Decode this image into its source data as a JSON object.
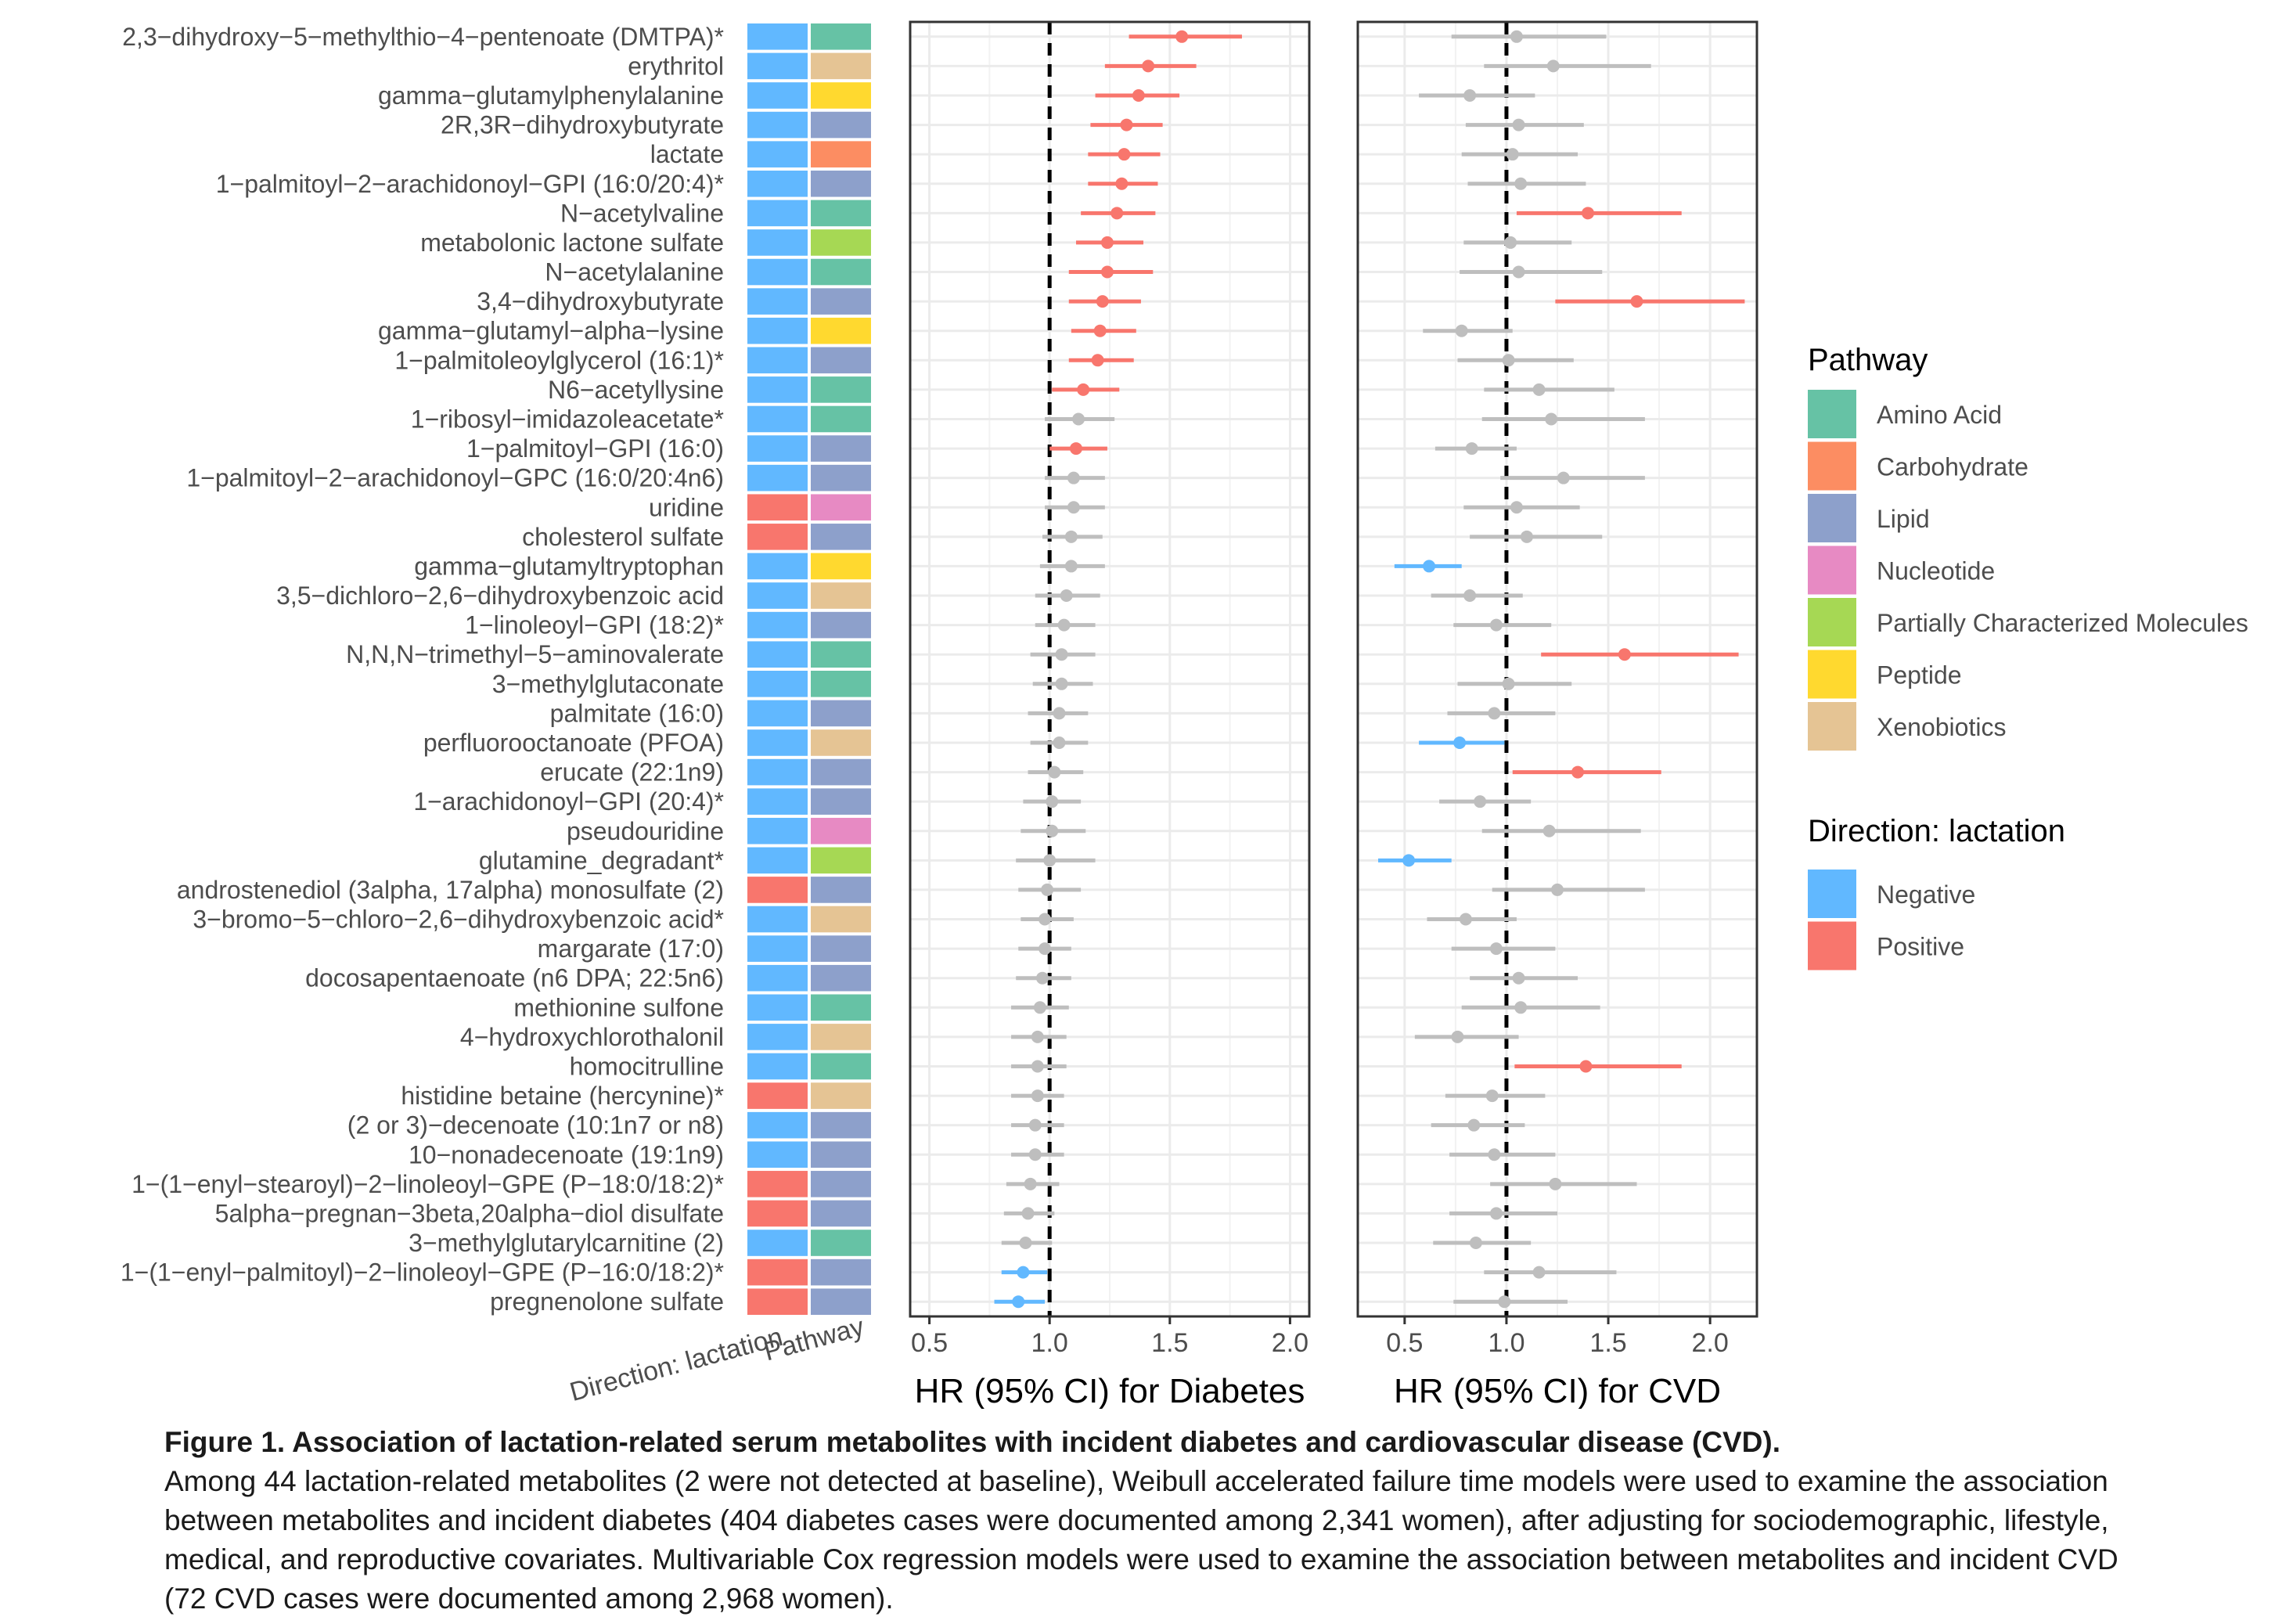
{
  "chart_data": {
    "type": "forest",
    "metabolites": [
      "2,3−dihydroxy−5−methylthio−4−pentenoate (DMTPA)*",
      "erythritol",
      "gamma−glutamylphenylalanine",
      "2R,3R−dihydroxybutyrate",
      "lactate",
      "1−palmitoyl−2−arachidonoyl−GPI (16:0/20:4)*",
      "N−acetylvaline",
      "metabolonic lactone sulfate",
      "N−acetylalanine",
      "3,4−dihydroxybutyrate",
      "gamma−glutamyl−alpha−lysine",
      "1−palmitoleoylglycerol (16:1)*",
      "N6−acetyllysine",
      "1−ribosyl−imidazoleacetate*",
      "1−palmitoyl−GPI (16:0)",
      "1−palmitoyl−2−arachidonoyl−GPC (16:0/20:4n6)",
      "uridine",
      "cholesterol sulfate",
      "gamma−glutamyltryptophan",
      "3,5−dichloro−2,6−dihydroxybenzoic acid",
      "1−linoleoyl−GPI (18:2)*",
      "N,N,N−trimethyl−5−aminovalerate",
      "3−methylglutaconate",
      "palmitate (16:0)",
      "perfluorooctanoate (PFOA)",
      "erucate (22:1n9)",
      "1−arachidonoyl−GPI (20:4)*",
      "pseudouridine",
      "glutamine_degradant*",
      "androstenediol (3alpha, 17alpha) monosulfate (2)",
      "3−bromo−5−chloro−2,6−dihydroxybenzoic acid*",
      "margarate (17:0)",
      "docosapentaenoate (n6 DPA; 22:5n6)",
      "methionine sulfone",
      "4−hydroxychlorothalonil",
      "homocitrulline",
      "histidine betaine (hercynine)*",
      "(2 or 3)−decenoate (10:1n7 or n8)",
      "10−nonadecenoate (19:1n9)",
      "1−(1−enyl−stearoyl)−2−linoleoyl−GPE (P−18:0/18:2)*",
      "5alpha−pregnan−3beta,20alpha−diol disulfate",
      "3−methylglutarylcarnitine (2)",
      "1−(1−enyl−palmitoyl)−2−linoleoyl−GPE (P−16:0/18:2)*",
      "pregnenolone sulfate"
    ],
    "direction": [
      "N",
      "N",
      "N",
      "N",
      "N",
      "N",
      "N",
      "N",
      "N",
      "N",
      "N",
      "N",
      "N",
      "N",
      "N",
      "N",
      "P",
      "P",
      "N",
      "N",
      "N",
      "N",
      "N",
      "N",
      "N",
      "N",
      "N",
      "N",
      "N",
      "P",
      "N",
      "N",
      "N",
      "N",
      "N",
      "N",
      "P",
      "N",
      "N",
      "P",
      "P",
      "N",
      "P",
      "P"
    ],
    "pathway": [
      "AA",
      "X",
      "PE",
      "L",
      "C",
      "L",
      "AA",
      "PCM",
      "AA",
      "L",
      "PE",
      "L",
      "AA",
      "AA",
      "L",
      "L",
      "NU",
      "L",
      "PE",
      "X",
      "L",
      "AA",
      "AA",
      "L",
      "X",
      "L",
      "L",
      "NU",
      "PCM",
      "L",
      "X",
      "L",
      "L",
      "AA",
      "X",
      "AA",
      "X",
      "L",
      "L",
      "L",
      "L",
      "AA",
      "L",
      "L"
    ],
    "diabetes": {
      "est": [
        1.55,
        1.41,
        1.37,
        1.32,
        1.31,
        1.3,
        1.28,
        1.24,
        1.24,
        1.22,
        1.21,
        1.2,
        1.14,
        1.12,
        1.11,
        1.1,
        1.1,
        1.09,
        1.09,
        1.07,
        1.06,
        1.05,
        1.05,
        1.04,
        1.04,
        1.02,
        1.01,
        1.01,
        1.0,
        0.99,
        0.98,
        0.98,
        0.97,
        0.96,
        0.95,
        0.95,
        0.95,
        0.94,
        0.94,
        0.92,
        0.91,
        0.9,
        0.89,
        0.87
      ],
      "lo": [
        1.33,
        1.23,
        1.19,
        1.17,
        1.16,
        1.16,
        1.13,
        1.11,
        1.08,
        1.08,
        1.09,
        1.08,
        1.01,
        0.98,
        1.0,
        0.98,
        0.98,
        0.97,
        0.96,
        0.94,
        0.94,
        0.92,
        0.93,
        0.91,
        0.92,
        0.91,
        0.89,
        0.88,
        0.86,
        0.87,
        0.88,
        0.87,
        0.86,
        0.84,
        0.84,
        0.84,
        0.84,
        0.84,
        0.84,
        0.82,
        0.81,
        0.8,
        0.8,
        0.77
      ],
      "hi": [
        1.8,
        1.61,
        1.54,
        1.47,
        1.46,
        1.45,
        1.44,
        1.39,
        1.43,
        1.38,
        1.36,
        1.35,
        1.29,
        1.27,
        1.24,
        1.23,
        1.23,
        1.22,
        1.23,
        1.21,
        1.19,
        1.19,
        1.18,
        1.16,
        1.16,
        1.14,
        1.13,
        1.15,
        1.19,
        1.13,
        1.1,
        1.09,
        1.09,
        1.08,
        1.07,
        1.07,
        1.06,
        1.06,
        1.06,
        1.04,
        1.02,
        1.01,
        0.99,
        0.98
      ],
      "sig": [
        1,
        1,
        1,
        1,
        1,
        1,
        1,
        1,
        1,
        1,
        1,
        1,
        1,
        0,
        1,
        0,
        0,
        0,
        0,
        0,
        0,
        0,
        0,
        0,
        0,
        0,
        0,
        0,
        0,
        0,
        0,
        0,
        0,
        0,
        0,
        0,
        0,
        0,
        0,
        0,
        0,
        0,
        1,
        1
      ],
      "xlabel": "HR (95% CI) for Diabetes",
      "xlim": [
        0.42,
        2.08
      ],
      "ticks": [
        "0.5",
        "1.0",
        "1.5",
        "2.0"
      ]
    },
    "cvd": {
      "est": [
        1.05,
        1.23,
        0.82,
        1.06,
        1.03,
        1.07,
        1.4,
        1.02,
        1.06,
        1.64,
        0.78,
        1.01,
        1.16,
        1.22,
        0.83,
        1.28,
        1.05,
        1.1,
        0.62,
        0.82,
        0.95,
        1.58,
        1.01,
        0.94,
        0.77,
        1.35,
        0.87,
        1.21,
        0.52,
        1.25,
        0.8,
        0.95,
        1.06,
        1.07,
        0.76,
        1.39,
        0.93,
        0.84,
        0.94,
        1.24,
        0.95,
        0.85,
        1.16,
        0.99
      ],
      "lo": [
        0.73,
        0.89,
        0.57,
        0.8,
        0.78,
        0.81,
        1.05,
        0.79,
        0.77,
        1.24,
        0.59,
        0.76,
        0.89,
        0.88,
        0.65,
        0.97,
        0.79,
        0.82,
        0.45,
        0.63,
        0.74,
        1.17,
        0.76,
        0.71,
        0.57,
        1.03,
        0.67,
        0.88,
        0.37,
        0.93,
        0.61,
        0.73,
        0.82,
        0.78,
        0.55,
        1.04,
        0.7,
        0.63,
        0.72,
        0.92,
        0.72,
        0.64,
        0.89,
        0.74
      ],
      "hi": [
        1.49,
        1.71,
        1.14,
        1.38,
        1.35,
        1.39,
        1.86,
        1.32,
        1.47,
        2.17,
        1.03,
        1.33,
        1.53,
        1.68,
        1.05,
        1.68,
        1.36,
        1.47,
        0.78,
        1.08,
        1.22,
        2.14,
        1.32,
        1.24,
        0.99,
        1.76,
        1.12,
        1.66,
        0.73,
        1.68,
        1.05,
        1.24,
        1.35,
        1.46,
        1.06,
        1.86,
        1.19,
        1.09,
        1.24,
        1.64,
        1.25,
        1.12,
        1.54,
        1.3
      ],
      "sig": [
        0,
        0,
        0,
        0,
        0,
        0,
        1,
        0,
        0,
        1,
        0,
        0,
        0,
        0,
        0,
        0,
        0,
        0,
        1,
        0,
        0,
        1,
        0,
        0,
        1,
        1,
        0,
        0,
        1,
        0,
        0,
        0,
        0,
        0,
        0,
        1,
        0,
        0,
        0,
        0,
        0,
        0,
        0,
        0
      ],
      "xlabel": "HR (95% CI) for CVD",
      "xlim": [
        0.27,
        2.23
      ],
      "ticks": [
        "0.5",
        "1.0",
        "1.5",
        "2.0"
      ]
    },
    "tile_axis_labels": [
      "Direction: lactation",
      "Pathway"
    ],
    "legend_pathway": {
      "title": "Pathway",
      "items": [
        {
          "key": "AA",
          "label": "Amino Acid",
          "color": "#66C2A5"
        },
        {
          "key": "C",
          "label": "Carbohydrate",
          "color": "#FC8D62"
        },
        {
          "key": "L",
          "label": "Lipid",
          "color": "#8DA0CB"
        },
        {
          "key": "NU",
          "label": "Nucleotide",
          "color": "#E78AC3"
        },
        {
          "key": "PCM",
          "label": "Partially Characterized Molecules",
          "color": "#A6D854"
        },
        {
          "key": "PE",
          "label": "Peptide",
          "color": "#FFD92F"
        },
        {
          "key": "X",
          "label": "Xenobiotics",
          "color": "#E5C494"
        }
      ]
    },
    "legend_direction": {
      "title": "Direction: lactation",
      "items": [
        {
          "key": "N",
          "label": "Negative",
          "color": "#61B8FF"
        },
        {
          "key": "P",
          "label": "Positive",
          "color": "#F8766D"
        }
      ]
    },
    "colors": {
      "positive": "#F8766D",
      "negative": "#61B8FF",
      "ns": "#BEBEBE"
    }
  },
  "caption": {
    "title": "Figure 1. Association of lactation-related serum metabolites with incident diabetes and cardiovascular disease (CVD).",
    "body": "Among 44 lactation-related metabolites (2 were not detected at baseline), Weibull accelerated failure time models were used to examine the association between metabolites and incident diabetes (404 diabetes cases were documented among 2,341 women), after adjusting for sociodemographic, lifestyle, medical, and reproductive covariates. Multivariable Cox regression models were used to examine the association between metabolites and incident CVD (72 CVD cases were documented among 2,968 women)."
  }
}
